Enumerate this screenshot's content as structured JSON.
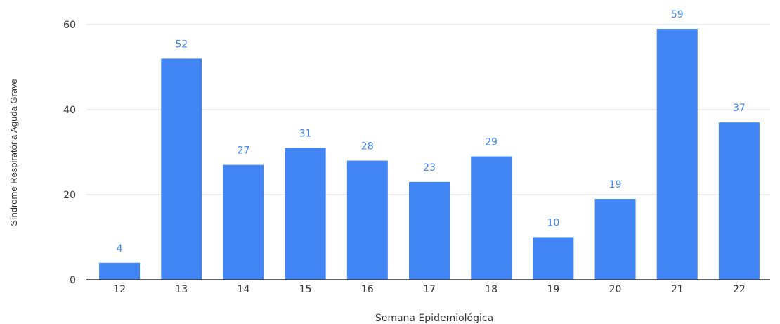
{
  "chart_data": {
    "type": "bar",
    "title": "",
    "xlabel": "Semana Epidemiológica",
    "ylabel": "Síndrome Respiratória Aguda Grave",
    "categories": [
      "12",
      "13",
      "14",
      "15",
      "16",
      "17",
      "18",
      "19",
      "20",
      "21",
      "22"
    ],
    "values": [
      4,
      52,
      27,
      31,
      28,
      23,
      29,
      10,
      19,
      59,
      37
    ],
    "ylim": [
      0,
      60
    ],
    "yticks": [
      0,
      20,
      40,
      60
    ],
    "grid": true,
    "legend": "none",
    "data_labels": true,
    "colors": {
      "bar": "#4285f4",
      "label": "#4285f4",
      "grid": "#dddddd",
      "axis": "#333333"
    }
  }
}
